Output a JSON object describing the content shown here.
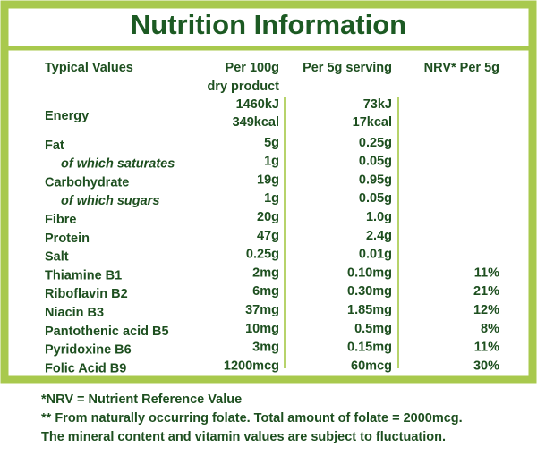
{
  "title": "Nutrition Information",
  "table": {
    "headers": [
      "Typical Values",
      [
        "Per 100g",
        "dry product"
      ],
      "Per 5g serving",
      "NRV* Per 5g"
    ],
    "rows": [
      {
        "label": "Energy",
        "per_100g": [
          "1460kJ",
          "349kcal"
        ],
        "per_5g": [
          "73kJ",
          "17kcal"
        ]
      },
      {
        "label": "Fat",
        "per_100g": "5g",
        "per_5g": "0.25g"
      },
      {
        "label": "of which saturates",
        "per_100g": "1g",
        "per_5g": "0.05g"
      },
      {
        "label": "Carbohydrate",
        "per_100g": "19g",
        "per_5g": "0.95g"
      },
      {
        "label": "of which sugars",
        "per_100g": "1g",
        "per_5g": "0.05g"
      },
      {
        "label": "Fibre",
        "per_100g": "20g",
        "per_5g": "1.0g"
      },
      {
        "label": "Protein",
        "per_100g": "47g",
        "per_5g": "2.4g"
      },
      {
        "label": "Salt",
        "per_100g": "0.25g",
        "per_5g": "0.01g"
      },
      {
        "label": "Thiamine B1",
        "per_100g": "2mg",
        "per_5g": "0.10mg",
        "nrv": "11%"
      },
      {
        "label": "Riboflavin B2",
        "per_100g": "6mg",
        "per_5g": "0.30mg",
        "nrv": "21%"
      },
      {
        "label": "Niacin B3",
        "per_100g": "37mg",
        "per_5g": "1.85mg",
        "nrv": "12%"
      },
      {
        "label": "Pantothenic acid B5",
        "per_100g": "10mg",
        "per_5g": "0.5mg",
        "nrv": "8%"
      },
      {
        "label": "Pyridoxine B6",
        "per_100g": "3mg",
        "per_5g": "0.15mg",
        "nrv": "11%"
      },
      {
        "label": "Folic Acid B9",
        "per_100g": "1200mcg",
        "per_5g": "60mcg",
        "nrv": "30%"
      }
    ]
  },
  "footnotes": [
    "*NRV = Nutrient Reference Value",
    "** From naturally occurring folate. Total amount of folate = 2000mcg.",
    "The mineral content and vitamin values are subject to fluctuation."
  ]
}
